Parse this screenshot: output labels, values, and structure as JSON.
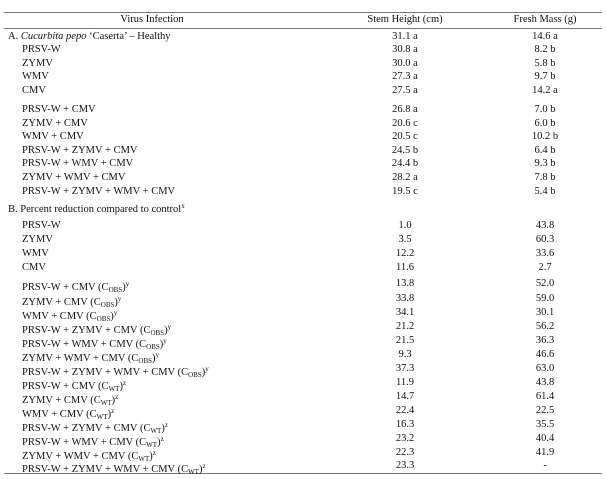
{
  "table": {
    "header": [
      "Virus Infection",
      "Stem Height (cm)",
      "Fresh Mass (g)"
    ],
    "section_a": {
      "title": [
        {
          "text": "A. "
        },
        {
          "text": "Cucurbita pepo",
          "style": "italic"
        },
        {
          "text": " ‘Caserta’ – Healthy"
        }
      ],
      "values": [
        "31.1 a",
        "14.6 a"
      ],
      "rows": [
        {
          "label": [
            {
              "text": "PRSV-W"
            }
          ],
          "values": [
            "30.8 a",
            "8.2 b"
          ]
        },
        {
          "label": [
            {
              "text": "ZYMV"
            }
          ],
          "values": [
            "30.0 a",
            "5.8 b"
          ]
        },
        {
          "label": [
            {
              "text": "WMV"
            }
          ],
          "values": [
            "27.3 a",
            "9.7 b"
          ]
        },
        {
          "label": [
            {
              "text": "CMV"
            }
          ],
          "values": [
            "27.5 a",
            "14.2 a"
          ]
        },
        {
          "label": [
            {
              "text": "PRSV-W + CMV"
            }
          ],
          "values": [
            "26.8 a",
            "7.0 b"
          ]
        },
        {
          "label": [
            {
              "text": "ZYMV + CMV"
            }
          ],
          "values": [
            "20.6 c",
            "6.0 b"
          ]
        },
        {
          "label": [
            {
              "text": "WMV + CMV"
            }
          ],
          "values": [
            "20.5 c",
            "10.2 b"
          ]
        },
        {
          "label": [
            {
              "text": "PRSV-W + ZYMV + CMV"
            }
          ],
          "values": [
            "24.5 b",
            "6.4 b"
          ]
        },
        {
          "label": [
            {
              "text": "PRSV-W + WMV + CMV"
            }
          ],
          "values": [
            "24.4 b",
            "9.3 b"
          ]
        },
        {
          "label": [
            {
              "text": "ZYMV + WMV + CMV"
            }
          ],
          "values": [
            "28.2 a",
            "7.8 b"
          ]
        },
        {
          "label": [
            {
              "text": "PRSV-W + ZYMV + WMV + CMV"
            }
          ],
          "values": [
            "19.5 c",
            "5.4 b"
          ]
        }
      ]
    },
    "section_b": {
      "title": [
        {
          "text": "B. Percent reduction compared to control"
        },
        {
          "text": "x",
          "style": "sup"
        }
      ],
      "rows": [
        {
          "label": [
            {
              "text": "PRSV-W"
            }
          ],
          "values": [
            "1.0",
            "43.8"
          ]
        },
        {
          "label": [
            {
              "text": "ZYMV"
            }
          ],
          "values": [
            "3.5",
            "60.3"
          ]
        },
        {
          "label": [
            {
              "text": "WMV"
            }
          ],
          "values": [
            "12.2",
            "33.6"
          ]
        },
        {
          "label": [
            {
              "text": "CMV"
            }
          ],
          "values": [
            "11.6",
            "2.7"
          ]
        },
        {
          "label": [
            {
              "text": "PRSV-W + CMV (C"
            },
            {
              "text": "OBS",
              "style": "sub"
            },
            {
              "text": ")"
            },
            {
              "text": "y",
              "style": "sup"
            }
          ],
          "values": [
            "13.8",
            "52.0"
          ]
        },
        {
          "label": [
            {
              "text": "ZYMV + CMV (C"
            },
            {
              "text": "OBS",
              "style": "sub"
            },
            {
              "text": ")"
            },
            {
              "text": "y",
              "style": "sup"
            }
          ],
          "values": [
            "33.8",
            "59.0"
          ]
        },
        {
          "label": [
            {
              "text": "WMV + CMV (C"
            },
            {
              "text": "OBS",
              "style": "sub"
            },
            {
              "text": ")"
            },
            {
              "text": "y",
              "style": "sup"
            }
          ],
          "values": [
            "34.1",
            "30.1"
          ]
        },
        {
          "label": [
            {
              "text": "PRSV-W + ZYMV + CMV (C"
            },
            {
              "text": "OBS",
              "style": "sub"
            },
            {
              "text": ")"
            },
            {
              "text": "y",
              "style": "sup"
            }
          ],
          "values": [
            "21.2",
            "56.2"
          ]
        },
        {
          "label": [
            {
              "text": "PRSV-W + WMV + CMV (C"
            },
            {
              "text": "OBS",
              "style": "sub"
            },
            {
              "text": ")"
            },
            {
              "text": "y",
              "style": "sup"
            }
          ],
          "values": [
            "21.5",
            "36.3"
          ]
        },
        {
          "label": [
            {
              "text": "ZYMV + WMV + CMV (C"
            },
            {
              "text": "OBS",
              "style": "sub"
            },
            {
              "text": ")"
            },
            {
              "text": "y",
              "style": "sup"
            }
          ],
          "values": [
            "9.3",
            "46.6"
          ]
        },
        {
          "label": [
            {
              "text": "PRSV-W + ZYMV + WMV + CMV (C"
            },
            {
              "text": "OBS",
              "style": "sub"
            },
            {
              "text": ")"
            },
            {
              "text": "y",
              "style": "sup"
            }
          ],
          "values": [
            "37.3",
            "63.0"
          ]
        },
        {
          "label": [
            {
              "text": "PRSV-W + CMV (C"
            },
            {
              "text": "WT",
              "style": "sub"
            },
            {
              "text": ")"
            },
            {
              "text": "z",
              "style": "sup"
            }
          ],
          "values": [
            "11.9",
            "43.8"
          ]
        },
        {
          "label": [
            {
              "text": "ZYMV + CMV (C"
            },
            {
              "text": "WT",
              "style": "sub"
            },
            {
              "text": ")"
            },
            {
              "text": "z",
              "style": "sup"
            }
          ],
          "values": [
            "14.7",
            "61.4"
          ]
        },
        {
          "label": [
            {
              "text": "WMV + CMV (C"
            },
            {
              "text": "WT",
              "style": "sub"
            },
            {
              "text": ")"
            },
            {
              "text": "z",
              "style": "sup"
            }
          ],
          "values": [
            "22.4",
            "22.5"
          ]
        },
        {
          "label": [
            {
              "text": "PRSV-W + ZYMV + CMV (C"
            },
            {
              "text": "WT",
              "style": "sub"
            },
            {
              "text": ")"
            },
            {
              "text": "z",
              "style": "sup"
            }
          ],
          "values": [
            "16.3",
            "35.5"
          ]
        },
        {
          "label": [
            {
              "text": "PRSV-W + WMV + CMV (C"
            },
            {
              "text": "WT",
              "style": "sub"
            },
            {
              "text": ")"
            },
            {
              "text": "z",
              "style": "sup"
            }
          ],
          "values": [
            "23.2",
            "40.4"
          ]
        },
        {
          "label": [
            {
              "text": "ZYMV + WMV + CMV (C"
            },
            {
              "text": "WT",
              "style": "sub"
            },
            {
              "text": ")"
            },
            {
              "text": "z",
              "style": "sup"
            }
          ],
          "values": [
            "22.3",
            "41.9"
          ]
        },
        {
          "label": [
            {
              "text": "PRSV-W + ZYMV + WMV + CMV (C"
            },
            {
              "text": "WT",
              "style": "sub"
            },
            {
              "text": ")"
            },
            {
              "text": "z",
              "style": "sup"
            }
          ],
          "values": [
            "23.3",
            "-"
          ]
        }
      ]
    }
  }
}
